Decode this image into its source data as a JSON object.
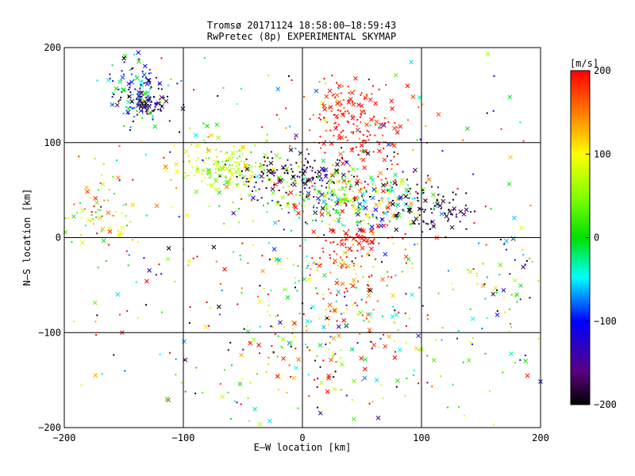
{
  "chart_data": {
    "type": "scatter",
    "title": "Tromsø 20171124 18:58:00–18:59:43",
    "subtitle": "RwPretec (8p) EXPERIMENTAL SKYMAP",
    "xlabel": "E–W location [km]",
    "ylabel": "N–S location [km]",
    "xlim": [
      -200,
      200
    ],
    "ylim": [
      -200,
      200
    ],
    "xticks": [
      -200,
      -100,
      0,
      100,
      200
    ],
    "yticks": [
      -200,
      -100,
      0,
      100,
      200
    ],
    "xtick_labels": [
      "−200",
      "−100",
      "0",
      "100",
      "200"
    ],
    "ytick_labels": [
      "−200",
      "−100",
      "0",
      "100",
      "200"
    ],
    "grid": true,
    "colorbar": {
      "label": "[m/s]",
      "range": [
        -200,
        200
      ],
      "ticks": [
        200,
        100,
        0,
        -100,
        -200
      ],
      "tick_labels": [
        "200",
        "100",
        "0",
        "−100",
        "−200"
      ],
      "colormap": "rainbow (black-purple-blue-cyan-green-yellow-orange-red)"
    },
    "clusters": [
      {
        "x": -140,
        "y": 150,
        "spread_x": 12,
        "spread_y": 15,
        "count": 140,
        "velocity": -90,
        "vel_spread": 70
      },
      {
        "x": -125,
        "y": 140,
        "spread_x": 8,
        "spread_y": 6,
        "count": 40,
        "velocity": -190,
        "vel_spread": 15
      },
      {
        "x": 45,
        "y": 125,
        "spread_x": 22,
        "spread_y": 25,
        "count": 180,
        "velocity": 190,
        "vel_spread": 20
      },
      {
        "x": -65,
        "y": 75,
        "spread_x": 20,
        "spread_y": 12,
        "count": 160,
        "velocity": 70,
        "vel_spread": 30
      },
      {
        "x": -10,
        "y": 65,
        "spread_x": 25,
        "spread_y": 12,
        "count": 120,
        "velocity": -180,
        "vel_spread": 25
      },
      {
        "x": 40,
        "y": 45,
        "spread_x": 35,
        "spread_y": 15,
        "count": 320,
        "velocity": 20,
        "vel_spread": 110
      },
      {
        "x": 110,
        "y": 30,
        "spread_x": 20,
        "spread_y": 12,
        "count": 80,
        "velocity": -185,
        "vel_spread": 20
      },
      {
        "x": 45,
        "y": 0,
        "spread_x": 15,
        "spread_y": 8,
        "count": 50,
        "velocity": 195,
        "vel_spread": 10
      },
      {
        "x": 40,
        "y": -40,
        "spread_x": 20,
        "spread_y": 25,
        "count": 90,
        "velocity": 150,
        "vel_spread": 60
      },
      {
        "x": -170,
        "y": 25,
        "spread_x": 20,
        "spread_y": 20,
        "count": 70,
        "velocity": 80,
        "vel_spread": 70
      },
      {
        "x": 20,
        "y": -110,
        "spread_x": 60,
        "spread_y": 50,
        "count": 200,
        "velocity": 60,
        "vel_spread": 140
      },
      {
        "x": 0,
        "y": 0,
        "spread_x": 120,
        "spread_y": 120,
        "count": 500,
        "velocity": 40,
        "vel_spread": 160
      },
      {
        "x": 170,
        "y": -60,
        "spread_x": 20,
        "spread_y": 40,
        "count": 60,
        "velocity": -40,
        "vel_spread": 100
      }
    ]
  }
}
